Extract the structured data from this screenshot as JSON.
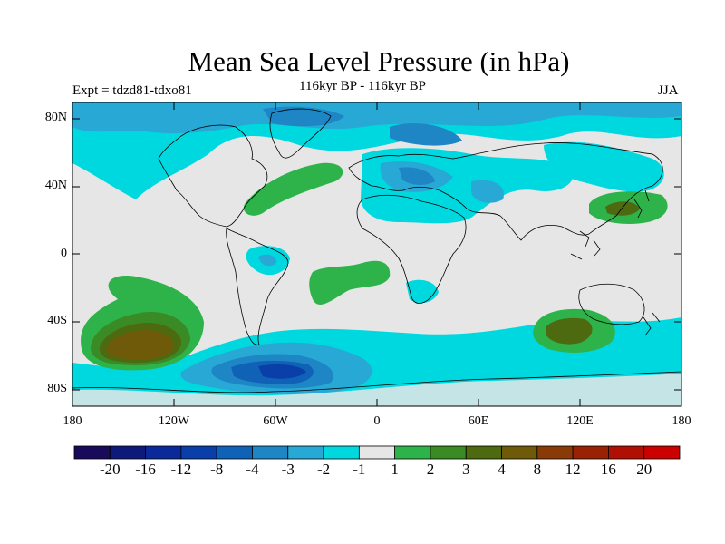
{
  "title": "Mean Sea Level Pressure (in hPa)",
  "subtitle_left": "Expt = tdzd81-tdxo81",
  "subtitle_center": "116kyr BP - 116kyr BP",
  "subtitle_right": "JJA",
  "lat_labels": [
    "80N",
    "40N",
    "0",
    "40S",
    "80S"
  ],
  "lon_labels": [
    "180",
    "120W",
    "60W",
    "0",
    "60E",
    "120E",
    "180"
  ],
  "colorbar": {
    "labels": [
      "-20",
      "-16",
      "-12",
      "-8",
      "-4",
      "-3",
      "-2",
      "-1",
      "1",
      "2",
      "3",
      "4",
      "8",
      "12",
      "16",
      "20"
    ],
    "colors": [
      "#1a0a5a",
      "#0d1a7a",
      "#0a2a9a",
      "#0a3ea8",
      "#1062b6",
      "#1f86c6",
      "#28a8d4",
      "#00d8e0",
      "#e6e6e6",
      "#2eb34a",
      "#3a8a26",
      "#4e6a10",
      "#6e5a08",
      "#8a3a06",
      "#9a2204",
      "#b01004",
      "#cc0000"
    ]
  },
  "colors": {
    "no_change": "#e6e6e6",
    "neg_1_2": "#00d8e0",
    "neg_2_3": "#28a8d4",
    "neg_3_4": "#1f86c6",
    "neg_4_8": "#1062b6",
    "neg_8_12": "#0a3ea8",
    "pos_1_2": "#2eb34a",
    "pos_2_3": "#3a8a26",
    "pos_3_4": "#4e6a10",
    "pos_4_8": "#6e5a08"
  }
}
